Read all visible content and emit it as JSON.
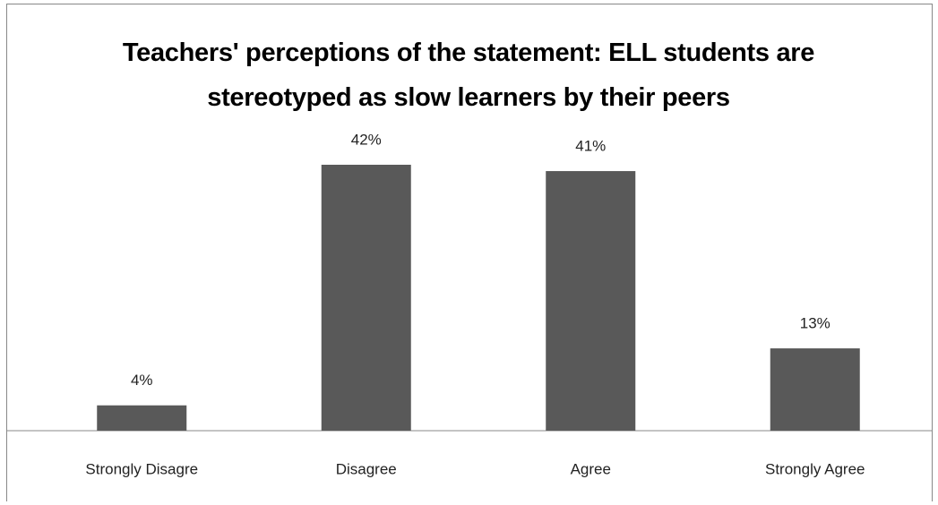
{
  "chart_data": {
    "type": "bar",
    "title": "Teachers' perceptions of the statement: ELL students are stereotyped as slow learners by their peers",
    "categories": [
      "Strongly Disagre",
      "Disagree",
      "Agree",
      "Strongly Agree"
    ],
    "values": [
      4,
      42,
      41,
      13
    ],
    "value_labels": [
      "4%",
      "42%",
      "41%",
      "13%"
    ],
    "color": "#595959"
  }
}
